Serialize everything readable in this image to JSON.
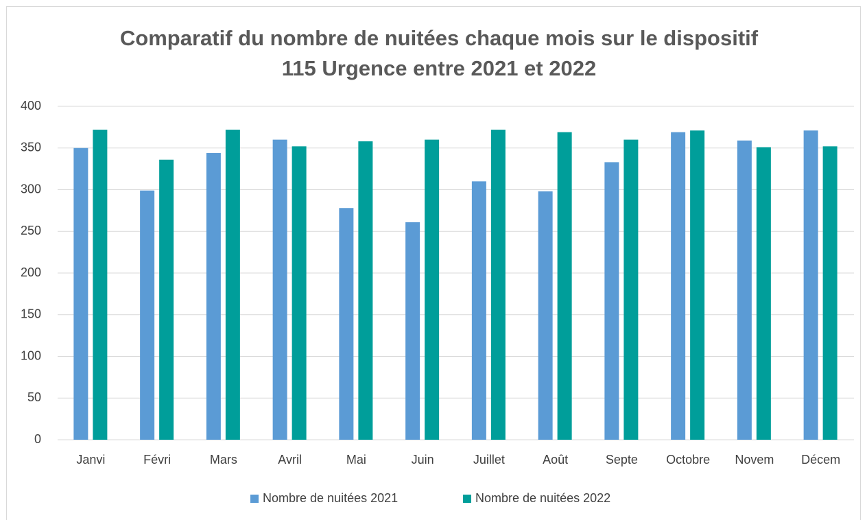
{
  "chart_data": {
    "type": "bar",
    "title": [
      "Comparatif du nombre de nuitées chaque mois sur le dispositif",
      "115 Urgence entre 2021 et 2022"
    ],
    "categories": [
      "Janvi",
      "Févri",
      "Mars",
      "Avril",
      "Mai",
      "Juin",
      "Juillet",
      "Août",
      "Septe",
      "Octobre",
      "Novem",
      "Décem"
    ],
    "series": [
      {
        "name": "Nombre de nuitées 2021",
        "color": "#5b9bd5",
        "values": [
          350,
          299,
          344,
          360,
          278,
          261,
          310,
          298,
          333,
          369,
          359,
          371
        ]
      },
      {
        "name": "Nombre de nuitées 2022",
        "color": "#009e9a",
        "values": [
          372,
          336,
          372,
          352,
          358,
          360,
          372,
          369,
          360,
          371,
          351,
          352
        ]
      }
    ],
    "ylim": [
      0,
      400
    ],
    "yticks": [
      0,
      50,
      100,
      150,
      200,
      250,
      300,
      350,
      400
    ],
    "grid": true,
    "legend": "bottom"
  }
}
